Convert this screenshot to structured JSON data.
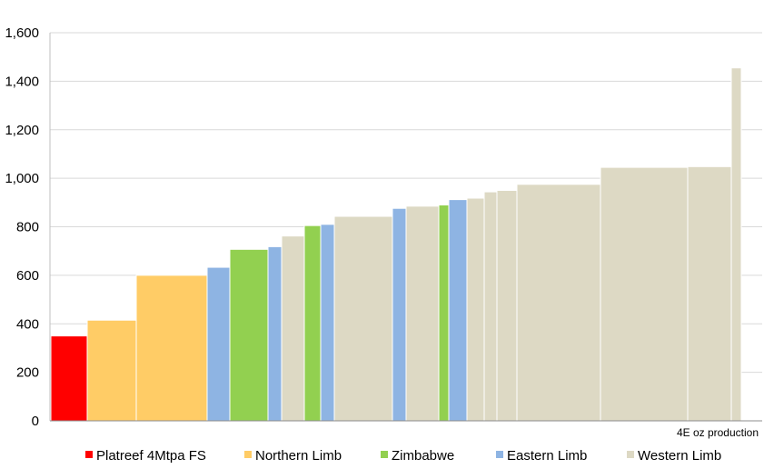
{
  "chart_data": {
    "type": "bar",
    "xlabel": "4E oz production",
    "ylabel": "",
    "ylim": [
      0,
      1600
    ],
    "yticks": [
      0,
      200,
      400,
      600,
      800,
      1000,
      1200,
      1400,
      1600
    ],
    "ytick_labels": [
      "0",
      "200",
      "400",
      "600",
      "800",
      "1,000",
      "1,200",
      "1,400",
      "1,600"
    ],
    "grid": true,
    "legend_position": "bottom",
    "variable_width": true,
    "legend": [
      {
        "key": "platreef",
        "label": "Platreef 4Mtpa FS",
        "color": "#ff0000"
      },
      {
        "key": "northern",
        "label": "Northern Limb",
        "color": "#ffcc66"
      },
      {
        "key": "zimbabwe",
        "label": "Zimbabwe",
        "color": "#92d050"
      },
      {
        "key": "eastern",
        "label": "Eastern Limb",
        "color": "#8eb4e3"
      },
      {
        "key": "western",
        "label": "Western Limb",
        "color": "#ddd9c4"
      }
    ],
    "bars": [
      {
        "value": 350,
        "width": 40,
        "group": "platreef"
      },
      {
        "value": 415,
        "width": 54,
        "group": "northern"
      },
      {
        "value": 600,
        "width": 78,
        "group": "northern"
      },
      {
        "value": 633,
        "width": 25,
        "group": "eastern"
      },
      {
        "value": 707,
        "width": 42,
        "group": "zimbabwe"
      },
      {
        "value": 718,
        "width": 15,
        "group": "eastern"
      },
      {
        "value": 762,
        "width": 25,
        "group": "western"
      },
      {
        "value": 805,
        "width": 18,
        "group": "zimbabwe"
      },
      {
        "value": 810,
        "width": 15,
        "group": "eastern"
      },
      {
        "value": 843,
        "width": 64,
        "group": "western"
      },
      {
        "value": 876,
        "width": 15,
        "group": "eastern"
      },
      {
        "value": 885,
        "width": 36,
        "group": "western"
      },
      {
        "value": 890,
        "width": 11,
        "group": "zimbabwe"
      },
      {
        "value": 912,
        "width": 20,
        "group": "eastern"
      },
      {
        "value": 918,
        "width": 19,
        "group": "western"
      },
      {
        "value": 944,
        "width": 14,
        "group": "western"
      },
      {
        "value": 950,
        "width": 22,
        "group": "western"
      },
      {
        "value": 975,
        "width": 92,
        "group": "western"
      },
      {
        "value": 1045,
        "width": 96,
        "group": "western"
      },
      {
        "value": 1048,
        "width": 48,
        "group": "western"
      },
      {
        "value": 1455,
        "width": 11,
        "group": "western"
      }
    ]
  }
}
